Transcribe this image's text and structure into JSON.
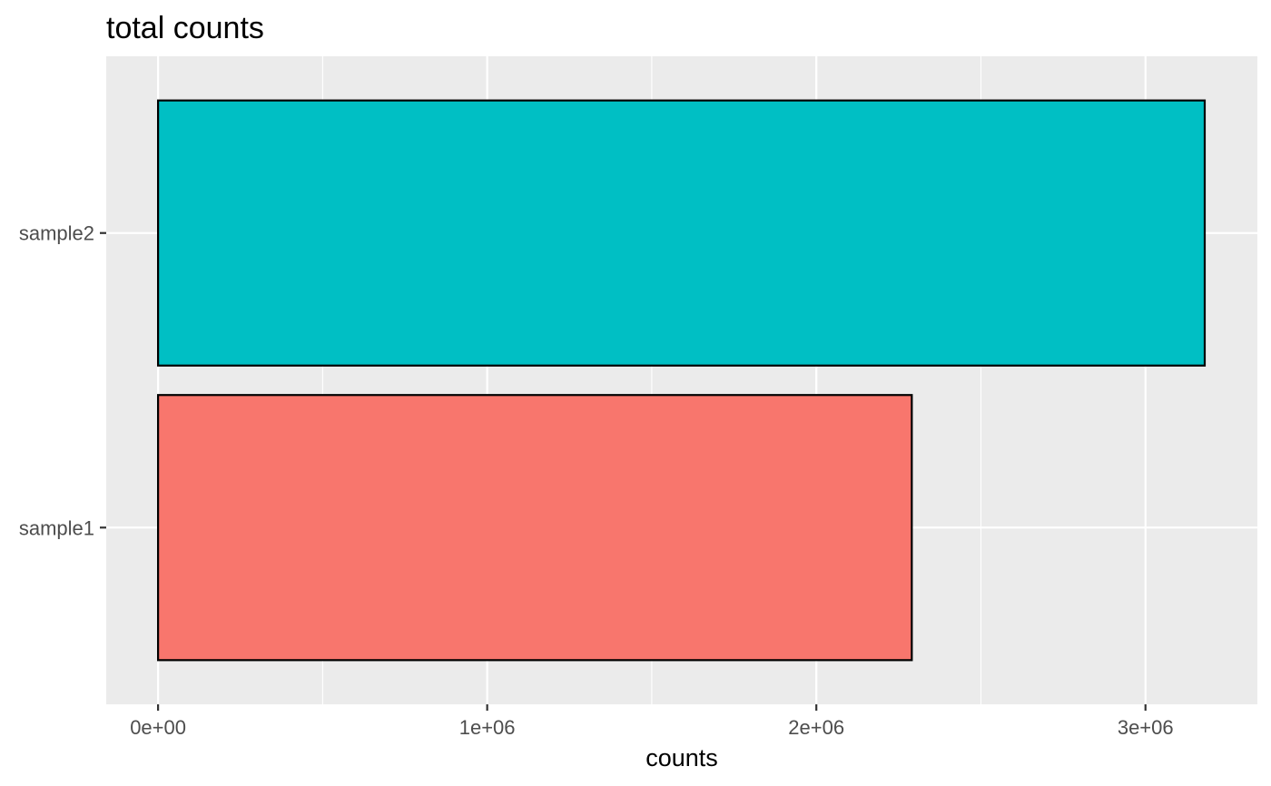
{
  "chart_data": {
    "type": "bar",
    "orientation": "horizontal",
    "title": "total counts",
    "xlabel": "counts",
    "ylabel": "",
    "categories": [
      "sample1",
      "sample2"
    ],
    "values": [
      2290000,
      3180000
    ],
    "bar_colors": [
      "#F8766D",
      "#00BFC4"
    ],
    "bar_outline": "#000000",
    "panel_background": "#EBEBEB",
    "grid_color": "#FFFFFF",
    "grid": true,
    "legend": "none",
    "xlim": [
      -157500,
      3340000
    ],
    "x_ticks": [
      0,
      1000000,
      2000000,
      3000000
    ],
    "x_tick_labels": [
      "0e+00",
      "1e+06",
      "2e+06",
      "3e+06"
    ],
    "x_minor_ticks": [
      500000,
      1500000,
      2500000
    ]
  }
}
